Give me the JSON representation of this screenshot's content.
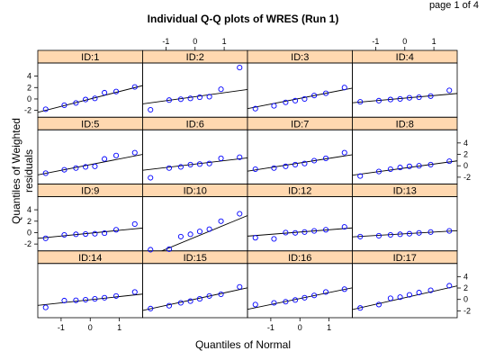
{
  "page": {
    "page_label": "page 1 of 4"
  },
  "chart_data": {
    "type": "scatter",
    "title": "Individual Q-Q plots of WRES (Run 1)",
    "xlabel": "Quantiles of Normal",
    "ylabel": "Quantiles of Weighted residuals",
    "xlim": [
      -1.8,
      1.8
    ],
    "ylim": [
      -3.2,
      6.3
    ],
    "x_ticks": [
      -1,
      0,
      1
    ],
    "y_ticks": [
      -2,
      0,
      2,
      4
    ],
    "x": [
      -1.53,
      -0.89,
      -0.49,
      -0.16,
      0.16,
      0.49,
      0.89,
      1.53
    ],
    "layout": {
      "columns": 4,
      "rows": 4
    },
    "point_color": "#0000ff",
    "strip_color": "#ffd8b0",
    "panels": [
      {
        "id": "ID:14",
        "y": [
          -1.4,
          -0.2,
          -0.15,
          -0.05,
          0.1,
          0.3,
          0.6,
          1.3
        ],
        "line": [
          -0.05,
          0.55
        ]
      },
      {
        "id": "ID:15",
        "y": [
          -1.6,
          -1.1,
          -0.6,
          -0.3,
          0.1,
          0.6,
          0.9,
          2.2
        ],
        "line": [
          0.05,
          1.1
        ]
      },
      {
        "id": "ID:16",
        "y": [
          -0.9,
          -0.6,
          -0.4,
          -0.1,
          0.3,
          0.7,
          1.3,
          1.8
        ],
        "line": [
          0.15,
          1.05
        ]
      },
      {
        "id": "ID:17",
        "y": [
          -1.5,
          -0.9,
          0.2,
          0.4,
          0.8,
          1.2,
          1.6,
          2.4
        ],
        "line": [
          0.3,
          1.15
        ]
      },
      {
        "id": "ID:9",
        "y": [
          -1.0,
          -0.4,
          -0.3,
          -0.25,
          -0.2,
          -0.1,
          0.5,
          1.5
        ],
        "line": [
          -0.1,
          0.5
        ]
      },
      {
        "id": "ID:10",
        "y": [
          -3.0,
          -2.9,
          -0.7,
          -0.3,
          0.2,
          0.6,
          2.0,
          3.3
        ],
        "line": [
          -0.8,
          2.1
        ]
      },
      {
        "id": "ID:12",
        "y": [
          -0.9,
          -1.1,
          0.0,
          -0.05,
          0.1,
          0.3,
          0.5,
          1.0
        ],
        "line": [
          0.1,
          0.4
        ]
      },
      {
        "id": "ID:13",
        "y": [
          -0.7,
          -0.55,
          -0.4,
          -0.3,
          -0.2,
          -0.05,
          0.1,
          0.3
        ],
        "line": [
          -0.2,
          0.3
        ]
      },
      {
        "id": "ID:5",
        "y": [
          -1.3,
          -0.7,
          -0.4,
          -0.2,
          -0.1,
          1.2,
          1.8,
          2.3
        ],
        "line": [
          0.2,
          1.0
        ]
      },
      {
        "id": "ID:6",
        "y": [
          -2.1,
          -0.4,
          -0.2,
          0.2,
          0.3,
          0.4,
          1.3,
          1.5
        ],
        "line": [
          0.3,
          0.6
        ]
      },
      {
        "id": "ID:7",
        "y": [
          -0.6,
          -0.4,
          -0.1,
          0.2,
          0.4,
          0.9,
          1.3,
          2.3
        ],
        "line": [
          0.5,
          0.8
        ]
      },
      {
        "id": "ID:8",
        "y": [
          -1.8,
          -1.0,
          -0.6,
          -0.3,
          -0.1,
          0.0,
          0.2,
          0.8
        ],
        "line": [
          -0.4,
          0.7
        ]
      },
      {
        "id": "ID:1",
        "y": [
          -1.8,
          -1.1,
          -0.7,
          -0.1,
          0.1,
          1.1,
          1.3,
          2.1
        ],
        "line": [
          0.0,
          1.3
        ]
      },
      {
        "id": "ID:2",
        "y": [
          -1.9,
          -0.2,
          -0.05,
          0.1,
          0.3,
          0.4,
          1.7,
          5.5
        ],
        "line": [
          0.4,
          0.7
        ]
      },
      {
        "id": "ID:3",
        "y": [
          -1.7,
          -1.2,
          -0.6,
          -0.3,
          0.0,
          0.6,
          1.0,
          2.0
        ],
        "line": [
          0.1,
          1.0
        ]
      },
      {
        "id": "ID:4",
        "y": [
          -0.5,
          -0.3,
          -0.1,
          0.0,
          0.2,
          0.3,
          0.5,
          1.5
        ],
        "line": [
          0.15,
          0.45
        ]
      }
    ]
  }
}
